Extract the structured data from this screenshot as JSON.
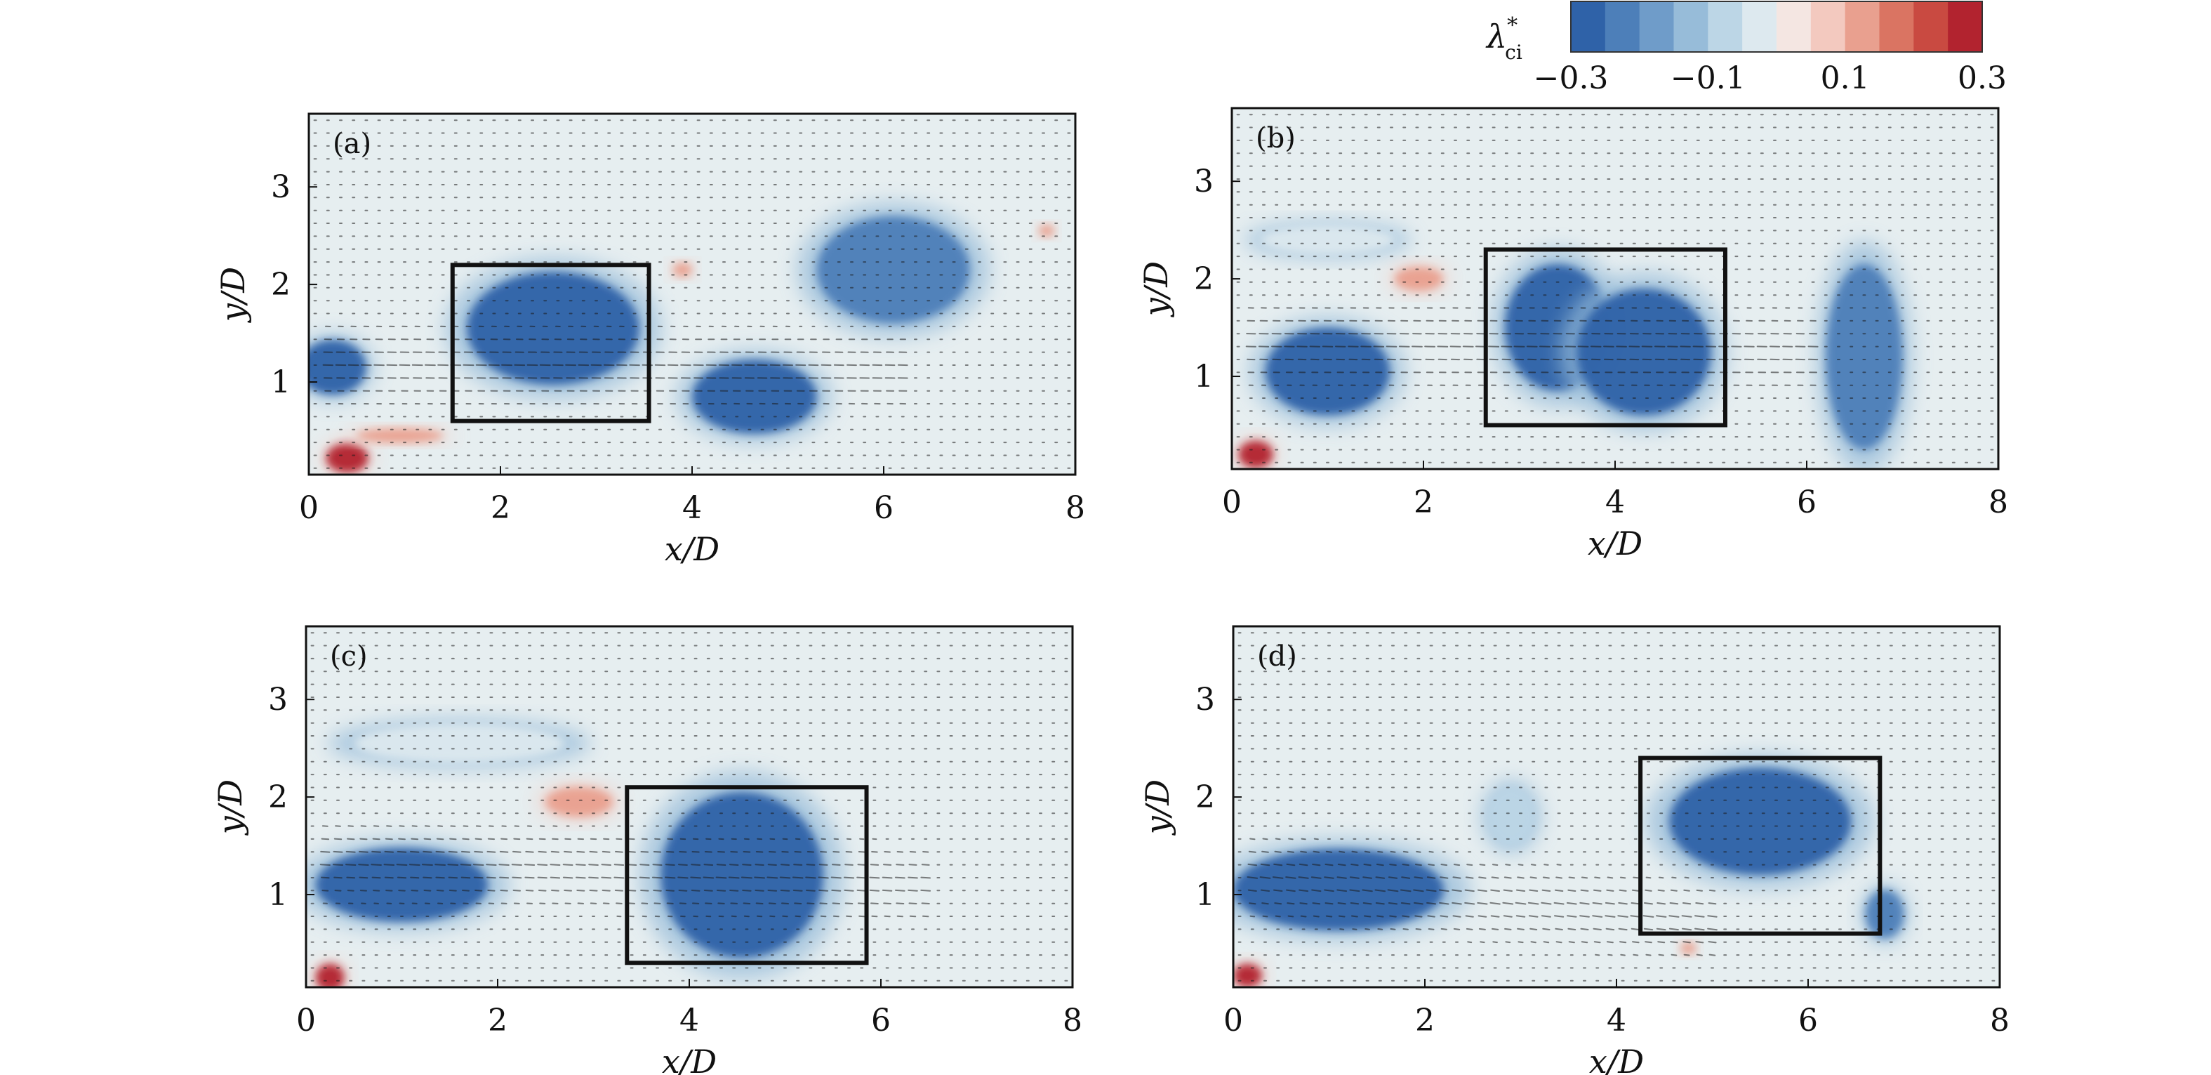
{
  "colorbar": {
    "label": "λ*ci",
    "label_main": "λ",
    "label_sup": "*",
    "label_sub": "ci",
    "tick_labels": [
      "−0.3",
      "−0.1",
      "0.1",
      "0.3"
    ],
    "tick_values": [
      -0.3,
      -0.1,
      0.1,
      0.3
    ],
    "range": [
      -0.3,
      0.3
    ],
    "colors": [
      "#2f62a8",
      "#4d7fb9",
      "#6f9cc9",
      "#97bcd9",
      "#bcd6e6",
      "#dde9ef",
      "#f4e6e2",
      "#f3c9bf",
      "#e9a08f",
      "#da7462",
      "#c94a41",
      "#b2232f"
    ]
  },
  "colors": {
    "background_field": "#e6eef0",
    "vector": "#1c1c1c",
    "box": "#111111"
  },
  "chart_data": [
    {
      "type": "heatmap",
      "panel_label": "(a)",
      "xlabel": "x/D",
      "ylabel": "y/D",
      "xlim": [
        0,
        8
      ],
      "ylim": [
        0.05,
        3.75
      ],
      "xticks": [
        "0",
        "2",
        "4",
        "6",
        "8"
      ],
      "xtick_values": [
        0,
        2,
        4,
        6,
        8
      ],
      "yticks": [
        "1",
        "2",
        "3"
      ],
      "ytick_values": [
        1,
        2,
        3
      ],
      "highlight_box": {
        "x0": 1.5,
        "x1": 3.55,
        "y0": 0.6,
        "y1": 2.2
      },
      "vortices": [
        {
          "x": 0.25,
          "y": 1.15,
          "rx": 0.35,
          "ry": 0.28,
          "value": -0.3
        },
        {
          "x": 2.55,
          "y": 1.55,
          "rx": 0.9,
          "ry": 0.58,
          "value": -0.3
        },
        {
          "x": 4.65,
          "y": 0.85,
          "rx": 0.65,
          "ry": 0.38,
          "value": -0.3
        },
        {
          "x": 6.1,
          "y": 2.15,
          "rx": 0.8,
          "ry": 0.55,
          "value": -0.2
        },
        {
          "x": 0.4,
          "y": 0.22,
          "rx": 0.22,
          "ry": 0.15,
          "value": 0.25
        },
        {
          "x": 0.95,
          "y": 0.45,
          "rx": 0.45,
          "ry": 0.07,
          "value": 0.1
        },
        {
          "x": 3.9,
          "y": 2.15,
          "rx": 0.1,
          "ry": 0.07,
          "value": 0.1
        },
        {
          "x": 7.7,
          "y": 2.55,
          "rx": 0.08,
          "ry": 0.06,
          "value": 0.1
        }
      ],
      "jet": {
        "x0": 0.2,
        "x1": 6.3,
        "y_start": 1.2,
        "y_end": 1.1
      }
    },
    {
      "type": "heatmap",
      "panel_label": "(b)",
      "xlabel": "x/D",
      "ylabel": "y/D",
      "xlim": [
        0,
        8
      ],
      "ylim": [
        0.05,
        3.75
      ],
      "xticks": [
        "0",
        "2",
        "4",
        "6",
        "8"
      ],
      "xtick_values": [
        0,
        2,
        4,
        6,
        8
      ],
      "yticks": [
        "1",
        "2",
        "3"
      ],
      "ytick_values": [
        1,
        2,
        3
      ],
      "highlight_box": {
        "x0": 2.65,
        "x1": 5.15,
        "y0": 0.5,
        "y1": 2.3
      },
      "vortices": [
        {
          "x": 1.0,
          "y": 1.05,
          "rx": 0.65,
          "ry": 0.45,
          "value": -0.3
        },
        {
          "x": 3.4,
          "y": 1.5,
          "rx": 0.55,
          "ry": 0.65,
          "value": -0.3
        },
        {
          "x": 4.3,
          "y": 1.25,
          "rx": 0.7,
          "ry": 0.65,
          "value": -0.3
        },
        {
          "x": 6.6,
          "y": 1.2,
          "rx": 0.4,
          "ry": 0.95,
          "value": -0.2
        },
        {
          "x": 1.0,
          "y": 2.4,
          "rx": 0.7,
          "ry": 0.15,
          "value": -0.05
        },
        {
          "x": 0.25,
          "y": 0.2,
          "rx": 0.18,
          "ry": 0.14,
          "value": 0.25
        },
        {
          "x": 1.95,
          "y": 2.0,
          "rx": 0.25,
          "ry": 0.12,
          "value": 0.1
        }
      ],
      "jet": {
        "x0": 0.1,
        "x1": 6.2,
        "y_start": 1.35,
        "y_end": 1.25
      }
    },
    {
      "type": "heatmap",
      "panel_label": "(c)",
      "xlabel": "x/D",
      "ylabel": "y/D",
      "xlim": [
        0,
        8
      ],
      "ylim": [
        0.05,
        3.75
      ],
      "xticks": [
        "0",
        "2",
        "4",
        "6",
        "8"
      ],
      "xtick_values": [
        0,
        2,
        4,
        6,
        8
      ],
      "yticks": [
        "1",
        "2",
        "3"
      ],
      "ytick_values": [
        1,
        2,
        3
      ],
      "highlight_box": {
        "x0": 3.35,
        "x1": 5.85,
        "y0": 0.3,
        "y1": 2.1
      },
      "vortices": [
        {
          "x": 1.0,
          "y": 1.1,
          "rx": 0.9,
          "ry": 0.38,
          "value": -0.3
        },
        {
          "x": 4.55,
          "y": 1.2,
          "rx": 0.85,
          "ry": 0.85,
          "value": -0.3
        },
        {
          "x": 1.6,
          "y": 2.55,
          "rx": 1.1,
          "ry": 0.2,
          "value": -0.05
        },
        {
          "x": 0.25,
          "y": 0.15,
          "rx": 0.15,
          "ry": 0.14,
          "value": 0.3
        },
        {
          "x": 2.85,
          "y": 1.95,
          "rx": 0.35,
          "ry": 0.15,
          "value": 0.1
        }
      ],
      "jet": {
        "x0": 0.1,
        "x1": 6.5,
        "y_start": 1.35,
        "y_end": 1.1
      }
    },
    {
      "type": "heatmap",
      "panel_label": "(d)",
      "xlabel": "x/D",
      "ylabel": "y/D",
      "xlim": [
        0,
        8
      ],
      "ylim": [
        0.05,
        3.75
      ],
      "xticks": [
        "0",
        "2",
        "4",
        "6",
        "8"
      ],
      "xtick_values": [
        0,
        2,
        4,
        6,
        8
      ],
      "yticks": [
        "1",
        "2",
        "3"
      ],
      "ytick_values": [
        1,
        2,
        3
      ],
      "highlight_box": {
        "x0": 4.25,
        "x1": 6.75,
        "y0": 0.6,
        "y1": 2.4
      },
      "vortices": [
        {
          "x": 1.1,
          "y": 1.05,
          "rx": 1.1,
          "ry": 0.42,
          "value": -0.3
        },
        {
          "x": 5.5,
          "y": 1.75,
          "rx": 0.95,
          "ry": 0.55,
          "value": -0.3
        },
        {
          "x": 6.8,
          "y": 0.8,
          "rx": 0.2,
          "ry": 0.25,
          "value": -0.2
        },
        {
          "x": 2.9,
          "y": 1.8,
          "rx": 0.25,
          "ry": 0.3,
          "value": -0.1
        },
        {
          "x": 0.15,
          "y": 0.17,
          "rx": 0.15,
          "ry": 0.12,
          "value": 0.3
        },
        {
          "x": 4.75,
          "y": 0.45,
          "rx": 0.08,
          "ry": 0.06,
          "value": 0.1
        }
      ],
      "jet": {
        "x0": 0.1,
        "x1": 5.0,
        "y_start": 1.2,
        "y_end": 0.7
      }
    }
  ]
}
